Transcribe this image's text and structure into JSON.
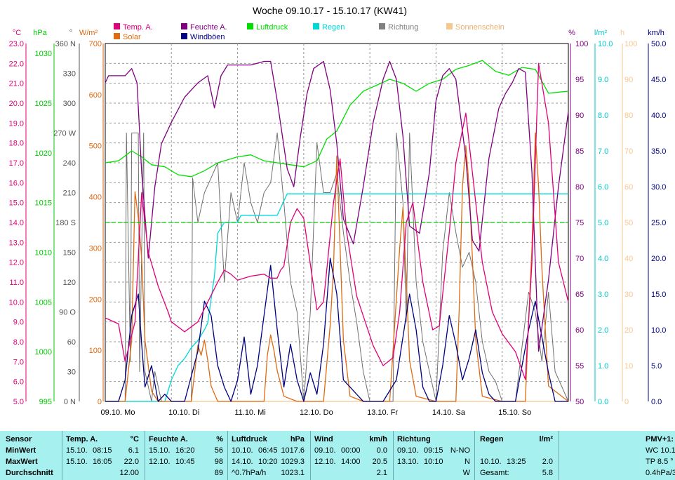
{
  "chart_data": {
    "type": "line",
    "title": "Woche 09.10.17 - 15.10.17 (KW41)",
    "x_labels": [
      "09.10. Mo",
      "10.10. Di",
      "11.10. Mi",
      "12.10. Do",
      "13.10. Fr",
      "14.10. Sa",
      "15.10. So"
    ],
    "axes": {
      "temp": {
        "unit": "°C",
        "ticks": [
          "23.0",
          "22.0",
          "21.0",
          "20.0",
          "19.0",
          "18.0",
          "17.0",
          "16.0",
          "15.0",
          "14.0",
          "13.0",
          "12.0",
          "11.0",
          "10.0",
          "9.0",
          "8.0",
          "7.0",
          "6.0",
          "5.0"
        ],
        "range": [
          5,
          23
        ],
        "color": "#e0007a"
      },
      "pressure": {
        "unit": "hPa",
        "ticks": [
          "1030",
          "1025",
          "1020",
          "1015",
          "1010",
          "1005",
          "1000",
          "995"
        ],
        "range": [
          995,
          1031
        ],
        "color": "#00c800"
      },
      "direction": {
        "unit": "°",
        "ticks": [
          "360 N",
          "330",
          "300",
          "270 W",
          "240",
          "210",
          "180 S",
          "150",
          "120",
          "90 O",
          "60",
          "30",
          "0 N"
        ],
        "range": [
          0,
          360
        ],
        "color": "#555555"
      },
      "solar": {
        "unit": "W/m²",
        "ticks": [
          "700",
          "600",
          "500",
          "400",
          "300",
          "200",
          "100",
          "0"
        ],
        "range": [
          0,
          700
        ],
        "color": "#e06a10"
      },
      "humidity": {
        "unit": "%",
        "ticks": [
          "100",
          "95",
          "90",
          "85",
          "80",
          "75",
          "70",
          "65",
          "60",
          "55",
          "50"
        ],
        "range": [
          50,
          100
        ],
        "color": "#800080"
      },
      "rain": {
        "unit": "l/m²",
        "ticks": [
          "10.0",
          "9.0",
          "8.0",
          "7.0",
          "6.0",
          "5.0",
          "4.0",
          "3.0",
          "2.0",
          "1.0",
          "0.0"
        ],
        "range": [
          0,
          10
        ],
        "color": "#00c8c8"
      },
      "sunshine": {
        "unit": "h",
        "ticks": [
          "100",
          "90",
          "80",
          "70",
          "60",
          "50",
          "40",
          "30",
          "20",
          "10",
          "0"
        ],
        "range": [
          0,
          100
        ],
        "color": "#f5c890"
      },
      "wind": {
        "unit": "km/h",
        "ticks": [
          "50.0",
          "45.0",
          "40.0",
          "35.0",
          "30.0",
          "25.0",
          "20.0",
          "15.0",
          "10.0",
          "5.0",
          "0.0"
        ],
        "range": [
          0,
          50
        ],
        "color": "#000080"
      }
    },
    "legend": [
      {
        "name": "Temp. A.",
        "color": "#e0007a"
      },
      {
        "name": "Solar",
        "color": "#e06a10"
      },
      {
        "name": "Feuchte A.",
        "color": "#800080"
      },
      {
        "name": "Windböen",
        "color": "#000080"
      },
      {
        "name": "Luftdruck",
        "color": "#00e000"
      },
      {
        "name": "Regen",
        "color": "#00d8d8"
      },
      {
        "name": "Richtung",
        "color": "#808080"
      },
      {
        "name": "Sonnenschein",
        "color": "#f5c890"
      }
    ],
    "grid": true,
    "series": [
      {
        "name": "Temp. A.",
        "axis": "temp",
        "x_days": [
          0,
          0.2,
          0.3,
          0.45,
          0.55,
          0.65,
          0.8,
          0.95,
          1.0,
          1.2,
          1.4,
          1.55,
          1.7,
          1.8,
          1.9,
          2.0,
          2.2,
          2.4,
          2.5,
          2.6,
          2.65,
          2.7,
          2.8,
          2.9,
          3.0,
          3.2,
          3.3,
          3.45,
          3.55,
          3.65,
          3.8,
          3.95,
          4.05,
          4.2,
          4.35,
          4.45,
          4.55,
          4.65,
          4.8,
          4.95,
          5.05,
          5.2,
          5.3,
          5.45,
          5.55,
          5.7,
          5.85,
          6.0,
          6.2,
          6.35,
          6.45,
          6.55,
          6.7,
          6.85,
          7.0
        ],
        "values": [
          9.2,
          8.9,
          7.0,
          9.0,
          15.5,
          12.5,
          10.8,
          9.5,
          9.0,
          8.5,
          9.0,
          10.0,
          11.0,
          11.6,
          11.4,
          11.1,
          11.3,
          11.4,
          11.2,
          11.2,
          11.6,
          11.8,
          14.0,
          14.7,
          14.2,
          9.6,
          10.0,
          15.0,
          17.2,
          13.5,
          10.3,
          8.8,
          7.8,
          6.8,
          7.2,
          9.5,
          14.0,
          15.0,
          11.0,
          8.6,
          8.8,
          13.5,
          17.0,
          19.5,
          16.5,
          12.0,
          9.5,
          8.4,
          7.5,
          6.1,
          12.0,
          22.0,
          19.0,
          12.0,
          10.0
        ]
      },
      {
        "name": "Feuchte A.",
        "axis": "humidity",
        "x_days": [
          0,
          0.05,
          0.15,
          0.3,
          0.4,
          0.48,
          0.55,
          0.65,
          0.75,
          0.85,
          1.0,
          1.2,
          1.4,
          1.55,
          1.65,
          1.75,
          1.85,
          2.0,
          2.2,
          2.4,
          2.5,
          2.6,
          2.75,
          2.85,
          2.95,
          3.05,
          3.15,
          3.3,
          3.4,
          3.5,
          3.6,
          3.75,
          3.9,
          4.05,
          4.2,
          4.3,
          4.4,
          4.5,
          4.6,
          4.75,
          4.9,
          5.0,
          5.1,
          5.2,
          5.3,
          5.45,
          5.55,
          5.65,
          5.8,
          5.95,
          6.05,
          6.15,
          6.25,
          6.35,
          6.45,
          6.55,
          6.7,
          6.85,
          7.0
        ],
        "values": [
          94.5,
          95.5,
          95.5,
          95.5,
          96.5,
          94.5,
          82.0,
          70.0,
          80.0,
          86.0,
          89.0,
          92.5,
          94.5,
          95.5,
          91.0,
          95.5,
          97.0,
          97.0,
          97.0,
          97.5,
          97.5,
          92.0,
          82.5,
          80.0,
          87.0,
          93.0,
          96.5,
          97.5,
          93.5,
          86.0,
          75.5,
          72.0,
          80.0,
          89.0,
          95.0,
          97.5,
          95.0,
          87.0,
          74.5,
          73.5,
          82.0,
          92.0,
          95.5,
          96.5,
          95.0,
          84.0,
          72.5,
          71.0,
          84.0,
          91.0,
          93.0,
          94.5,
          96.5,
          96.0,
          82.0,
          57.0,
          67.0,
          80.0,
          90.5
        ]
      },
      {
        "name": "Luftdruck",
        "axis": "pressure",
        "x_days": [
          0,
          0.2,
          0.4,
          0.55,
          0.7,
          0.9,
          1.1,
          1.3,
          1.5,
          1.7,
          2.0,
          2.2,
          2.4,
          2.6,
          2.8,
          3.0,
          3.2,
          3.35,
          3.5,
          3.7,
          3.9,
          4.1,
          4.3,
          4.5,
          4.7,
          4.9,
          5.1,
          5.3,
          5.5,
          5.7,
          5.9,
          6.1,
          6.3,
          6.5,
          6.7,
          7.0
        ],
        "values": [
          1019.0,
          1019.2,
          1020.2,
          1019.6,
          1018.8,
          1018.6,
          1017.8,
          1017.6,
          1018.2,
          1019.0,
          1019.6,
          1019.8,
          1019.2,
          1019.0,
          1018.8,
          1018.6,
          1019.2,
          1021.4,
          1022.2,
          1024.8,
          1026.2,
          1026.8,
          1027.4,
          1027.0,
          1026.2,
          1027.0,
          1027.4,
          1028.4,
          1028.8,
          1029.3,
          1028.2,
          1027.8,
          1028.6,
          1028.4,
          1026.0,
          1026.2
        ]
      },
      {
        "name": "Regen",
        "axis": "rain",
        "x_days": [
          0,
          0.9,
          1.0,
          1.1,
          1.2,
          1.3,
          1.4,
          1.5,
          1.55,
          1.65,
          1.7,
          1.8,
          2.0,
          2.05,
          2.1,
          2.3,
          2.6,
          2.7,
          2.75,
          2.78,
          3.0,
          4.0,
          5.0,
          6.0,
          7.0
        ],
        "values": [
          0,
          0,
          0.6,
          1.0,
          1.2,
          1.5,
          1.7,
          2.0,
          2.2,
          3.5,
          4.7,
          5.0,
          5.0,
          5.2,
          5.2,
          5.2,
          5.2,
          5.6,
          5.8,
          5.8,
          5.8,
          5.8,
          5.8,
          5.8,
          5.8
        ]
      },
      {
        "name": "Windböen",
        "axis": "wind",
        "x_days": [
          0,
          0.2,
          0.3,
          0.4,
          0.5,
          0.55,
          0.6,
          0.7,
          0.8,
          0.9,
          1.0,
          1.2,
          1.4,
          1.5,
          1.6,
          1.7,
          1.8,
          1.9,
          2.0,
          2.1,
          2.2,
          2.3,
          2.4,
          2.5,
          2.6,
          2.65,
          2.7,
          2.8,
          2.9,
          3.0,
          3.1,
          3.2,
          3.3,
          3.4,
          3.5,
          3.6,
          3.7,
          3.8,
          3.9,
          4.0,
          4.2,
          4.4,
          4.6,
          4.7,
          4.8,
          4.9,
          5.0,
          5.1,
          5.2,
          5.3,
          5.4,
          5.5,
          5.6,
          5.7,
          5.8,
          5.9,
          6.0,
          6.2,
          6.4,
          6.5,
          6.6,
          6.7,
          6.8,
          7.0
        ],
        "values": [
          0,
          0,
          3,
          12,
          15,
          8,
          2,
          5,
          0,
          1,
          0,
          0,
          7,
          14,
          12,
          5,
          2,
          0,
          3,
          9,
          1,
          5,
          12,
          19,
          10,
          6,
          2,
          8,
          3,
          0,
          4,
          1,
          8,
          20,
          15,
          3,
          2,
          1,
          0,
          0,
          0,
          3,
          15,
          10,
          2,
          0,
          0,
          5,
          12,
          8,
          3,
          6,
          10,
          4,
          1,
          0,
          0,
          0,
          10,
          14,
          9,
          4,
          0,
          0
        ]
      },
      {
        "name": "Solar",
        "axis": "solar",
        "x_days": [
          0,
          0.3,
          0.4,
          0.45,
          0.5,
          0.55,
          0.6,
          0.7,
          0.8,
          1.0,
          1.3,
          1.4,
          1.45,
          1.5,
          1.55,
          1.6,
          1.7,
          2.0,
          2.4,
          2.45,
          2.5,
          2.55,
          2.6,
          2.7,
          2.9,
          3.0,
          3.3,
          3.4,
          3.45,
          3.5,
          3.55,
          3.6,
          3.7,
          3.9,
          4.0,
          4.3,
          4.4,
          4.45,
          4.5,
          4.55,
          4.6,
          4.7,
          5.0,
          5.3,
          5.35,
          5.4,
          5.45,
          5.5,
          5.55,
          5.6,
          5.7,
          6.0,
          6.35,
          6.4,
          6.45,
          6.5,
          6.55,
          6.6,
          6.7,
          7.0
        ],
        "values": [
          0,
          0,
          120,
          410,
          360,
          280,
          120,
          20,
          0,
          0,
          0,
          110,
          90,
          120,
          80,
          30,
          0,
          0,
          0,
          90,
          130,
          100,
          60,
          10,
          0,
          0,
          0,
          150,
          260,
          480,
          300,
          120,
          10,
          0,
          0,
          0,
          200,
          300,
          380,
          240,
          80,
          10,
          0,
          0,
          180,
          420,
          500,
          420,
          280,
          120,
          10,
          0,
          0,
          160,
          300,
          525,
          420,
          260,
          30,
          0
        ]
      },
      {
        "name": "Richtung",
        "axis": "direction",
        "x_days": [
          0,
          0.3,
          0.32,
          0.38,
          0.4,
          0.5,
          0.52,
          0.58,
          0.6,
          0.7,
          0.75,
          0.85,
          1.0,
          1.3,
          1.32,
          1.4,
          1.5,
          1.6,
          1.7,
          1.8,
          1.9,
          2.0,
          2.1,
          2.2,
          2.3,
          2.4,
          2.5,
          2.6,
          2.7,
          2.8,
          2.9,
          3.0,
          3.1,
          3.2,
          3.3,
          3.4,
          3.5,
          3.6,
          3.7,
          3.8,
          3.9,
          4.0,
          4.2,
          4.35,
          4.4,
          4.5,
          4.55,
          4.6,
          4.7,
          4.8,
          4.9,
          5.0,
          5.1,
          5.2,
          5.3,
          5.4,
          5.5,
          5.6,
          5.7,
          5.8,
          5.9,
          6.0,
          6.2,
          6.4,
          6.5,
          6.6,
          6.7,
          6.8,
          7.0
        ],
        "values": [
          0,
          0,
          270,
          40,
          270,
          270,
          30,
          270,
          30,
          0,
          30,
          0,
          0,
          0,
          225,
          180,
          210,
          225,
          240,
          120,
          210,
          180,
          240,
          200,
          180,
          210,
          220,
          270,
          200,
          120,
          90,
          0,
          90,
          260,
          210,
          210,
          230,
          170,
          120,
          80,
          30,
          0,
          0,
          0,
          270,
          200,
          80,
          270,
          120,
          60,
          30,
          0,
          150,
          210,
          170,
          135,
          150,
          120,
          60,
          30,
          20,
          0,
          0,
          110,
          90,
          40,
          110,
          30,
          0
        ]
      },
      {
        "name": "Sonnenschein",
        "axis": "sunshine",
        "x_days": [
          0,
          7.0
        ],
        "values": [
          0,
          0
        ]
      }
    ]
  },
  "stats": {
    "headers": {
      "sensor": "Sensor",
      "temp": "Temp. A.",
      "temp_unit": "°C",
      "hum": "Feuchte A.",
      "hum_unit": "%",
      "press": "Luftdruck",
      "press_unit": "hPa",
      "wind": "Wind",
      "wind_unit": "km/h",
      "dir": "Richtung",
      "rain": "Regen",
      "rain_unit": "l/m²",
      "pmv": "PMV+1:"
    },
    "row_labels": [
      "MinWert",
      "MaxWert",
      "Durchschnitt"
    ],
    "temp": [
      [
        "15.10.",
        "08:15",
        "6.1"
      ],
      [
        "15.10.",
        "16:05",
        "22.0"
      ],
      [
        "",
        "",
        "12.00"
      ]
    ],
    "hum": [
      [
        "15.10.",
        "16:20",
        "56"
      ],
      [
        "12.10.",
        "10:45",
        "98"
      ],
      [
        "",
        "",
        "89"
      ]
    ],
    "press": [
      [
        "10.10.",
        "06:45",
        "1017.6"
      ],
      [
        "14.10.",
        "10:20",
        "1029.3"
      ],
      [
        "^0.7hPa/h",
        "",
        "1023.1"
      ]
    ],
    "wind": [
      [
        "09.10.",
        "00:00",
        "0.0"
      ],
      [
        "12.10.",
        "14:00",
        "20.5"
      ],
      [
        "",
        "",
        "2.1"
      ]
    ],
    "dir": [
      [
        "09.10.",
        "09:15",
        "N-NO"
      ],
      [
        "13.10.",
        "10:10",
        "N"
      ],
      [
        "",
        "",
        "W"
      ]
    ],
    "rain": [
      [
        "",
        "",
        ""
      ],
      [
        "10.10.",
        "13:25",
        "2.0"
      ],
      [
        "Gesamt:",
        "",
        "5.8"
      ]
    ],
    "pmv": [
      "WC 10.1",
      "TP 8.5 °",
      "0.4hPa/3"
    ]
  }
}
